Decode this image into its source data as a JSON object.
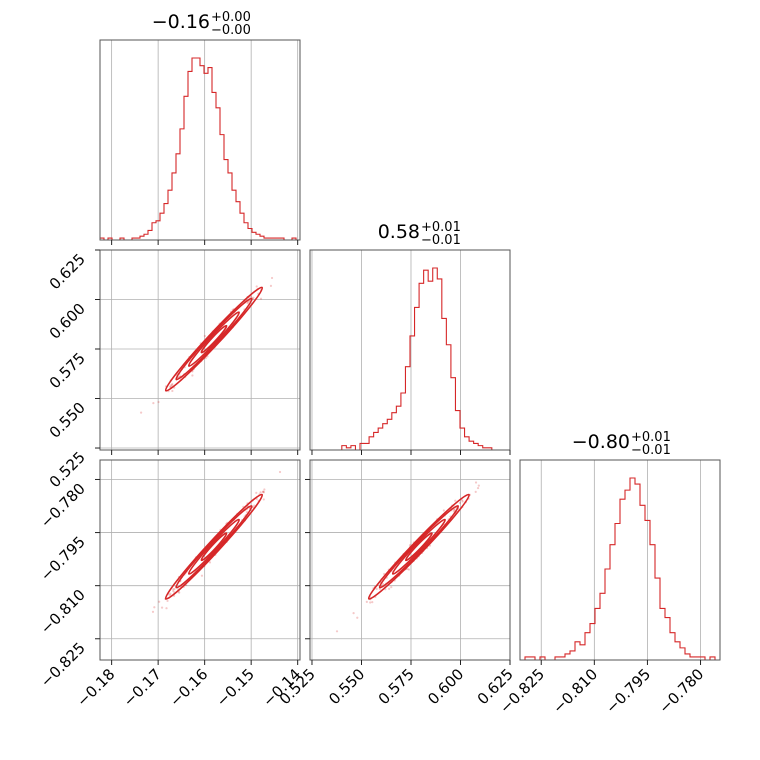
{
  "chart_data": {
    "type": "corner",
    "color": "#d62728",
    "titles": [
      {
        "value": "−0.16",
        "sup": "+0.00",
        "sub": "−0.00"
      },
      {
        "value": "0.58",
        "sup": "+0.01",
        "sub": "−0.01"
      },
      {
        "value": "−0.80",
        "sup": "+0.01",
        "sub": "−0.01"
      }
    ],
    "parameters": [
      {
        "range": [
          -0.1825,
          -0.1395
        ],
        "ticks": [
          -0.18,
          -0.17,
          -0.16,
          -0.15,
          -0.14
        ],
        "tick_labels": [
          "−0.18",
          "−0.17",
          "−0.16",
          "−0.15",
          "−0.14"
        ]
      },
      {
        "range": [
          0.524,
          0.625
        ],
        "ticks": [
          0.525,
          0.55,
          0.575,
          0.6,
          0.625
        ],
        "tick_labels": [
          "0.525",
          "0.550",
          "0.575",
          "0.600",
          "0.625"
        ]
      },
      {
        "range": [
          -0.831,
          -0.7745
        ],
        "ticks": [
          -0.825,
          -0.81,
          -0.795,
          -0.78
        ],
        "tick_labels": [
          "−0.825",
          "−0.810",
          "−0.795",
          "−0.780"
        ]
      }
    ],
    "histograms": [
      {
        "parameter": 0,
        "bin_edges": [
          -0.1825,
          -0.1395
        ],
        "counts": [
          1,
          0,
          1,
          0,
          0,
          1,
          0,
          0,
          1,
          1,
          2,
          3,
          5,
          9,
          10,
          14,
          19,
          26,
          35,
          45,
          58,
          75,
          88,
          95,
          95,
          91,
          87,
          90,
          77,
          69,
          55,
          42,
          35,
          26,
          20,
          14,
          9,
          6,
          4,
          3,
          2,
          1,
          1,
          1,
          1,
          1,
          0,
          0,
          1,
          0
        ]
      },
      {
        "parameter": 1,
        "bin_edges": [
          0.524,
          0.625
        ],
        "counts": [
          0,
          0,
          0,
          0,
          0,
          0,
          0,
          2,
          1,
          2,
          0,
          3,
          3,
          6,
          8,
          10,
          12,
          14,
          17,
          20,
          26,
          38,
          52,
          65,
          76,
          82,
          77,
          83,
          78,
          60,
          48,
          33,
          18,
          10,
          6,
          4,
          3,
          2,
          1,
          1,
          0,
          0,
          0,
          0
        ]
      },
      {
        "parameter": 2,
        "bin_edges": [
          -0.831,
          -0.7745
        ],
        "counts": [
          0,
          1,
          1,
          0,
          1,
          0,
          0,
          1,
          1,
          2,
          3,
          6,
          5,
          9,
          12,
          17,
          22,
          30,
          38,
          45,
          53,
          56,
          60,
          58,
          51,
          46,
          38,
          27,
          17,
          14,
          9,
          6,
          4,
          2,
          1,
          1,
          1,
          0,
          1,
          0
        ]
      }
    ],
    "scatter_pairs": [
      {
        "x": 1,
        "y": 0
      },
      {
        "x": 2,
        "y": 0
      },
      {
        "x": 2,
        "y": 1
      }
    ]
  }
}
